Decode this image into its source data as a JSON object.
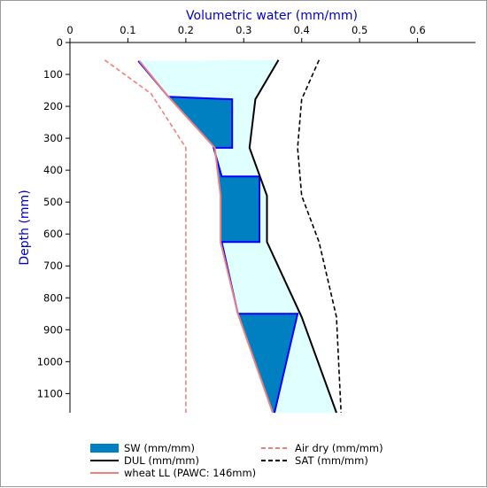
{
  "chart_data": {
    "type": "line",
    "xlabel": "Volumetric water (mm/mm)",
    "ylabel": "Depth (mm)",
    "xlim": [
      0,
      0.7
    ],
    "ylim": [
      0,
      1160
    ],
    "x_ticks": [
      "0",
      "0.1",
      "0.2",
      "0.3",
      "0.4",
      "0.5",
      "0.6"
    ],
    "y_ticks": [
      "0",
      "100",
      "200",
      "300",
      "400",
      "500",
      "600",
      "700",
      "800",
      "900",
      "1000",
      "1100"
    ],
    "x_axis_position": "top",
    "y_axis_inverted": true,
    "grid": false,
    "legend_position": "bottom",
    "colors": {
      "axis_title": "#0000cc",
      "sw_fill": "#0080c0",
      "sw_line": "#0000ff",
      "pawc_fill": "#e0ffff",
      "dul": "#000000",
      "sat": "#000000",
      "ll": "#f08080",
      "airdry": "#f08080"
    },
    "series": [
      {
        "name": "SW (mm/mm)",
        "key": "sw",
        "style": "filled-area",
        "points": [
          [
            0.118,
            58
          ],
          [
            0.17,
            170
          ],
          [
            0.28,
            178
          ],
          [
            0.28,
            330
          ],
          [
            0.248,
            330
          ],
          [
            0.262,
            420
          ],
          [
            0.327,
            420
          ],
          [
            0.327,
            625
          ],
          [
            0.262,
            625
          ],
          [
            0.29,
            850
          ],
          [
            0.393,
            850
          ],
          [
            0.353,
            1160
          ]
        ]
      },
      {
        "name": "DUL (mm/mm)",
        "key": "dul",
        "style": "solid",
        "points": [
          [
            0.36,
            55
          ],
          [
            0.32,
            178
          ],
          [
            0.31,
            330
          ],
          [
            0.34,
            480
          ],
          [
            0.34,
            625
          ],
          [
            0.4,
            860
          ],
          [
            0.46,
            1160
          ]
        ]
      },
      {
        "name": "wheat LL (PAWC: 146mm)",
        "key": "ll",
        "style": "solid",
        "points": [
          [
            0.12,
            58
          ],
          [
            0.17,
            170
          ],
          [
            0.25,
            330
          ],
          [
            0.26,
            480
          ],
          [
            0.26,
            625
          ],
          [
            0.29,
            850
          ],
          [
            0.35,
            1160
          ]
        ]
      },
      {
        "name": "Air dry (mm/mm)",
        "key": "airdry",
        "style": "dashed",
        "points": [
          [
            0.06,
            55
          ],
          [
            0.14,
            160
          ],
          [
            0.2,
            330
          ],
          [
            0.2,
            480
          ],
          [
            0.2,
            625
          ],
          [
            0.2,
            850
          ],
          [
            0.2,
            1160
          ]
        ]
      },
      {
        "name": "SAT (mm/mm)",
        "key": "sat",
        "style": "dashed",
        "points": [
          [
            0.43,
            55
          ],
          [
            0.4,
            178
          ],
          [
            0.393,
            330
          ],
          [
            0.4,
            480
          ],
          [
            0.43,
            625
          ],
          [
            0.46,
            860
          ],
          [
            0.468,
            1160
          ]
        ]
      }
    ]
  }
}
